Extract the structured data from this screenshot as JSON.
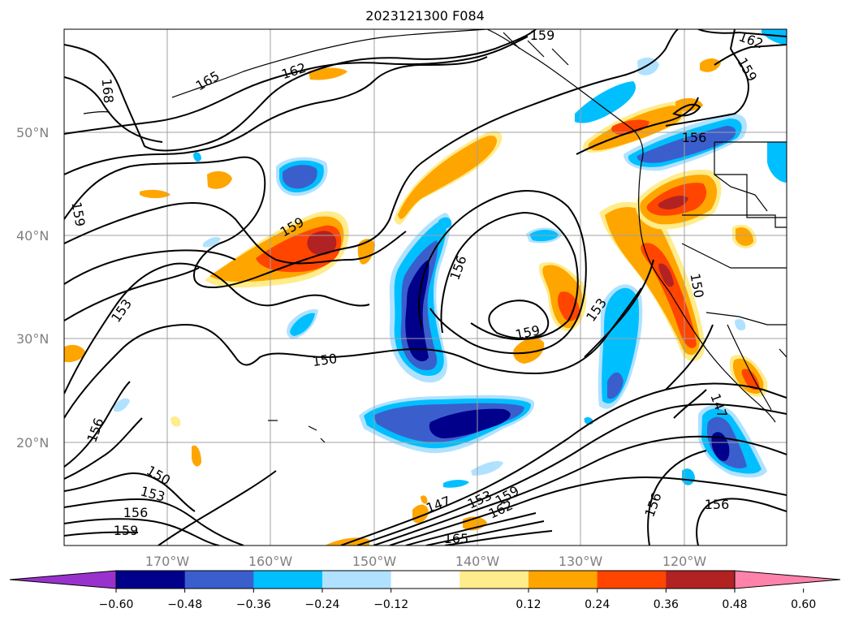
{
  "title": "2023121300 F084",
  "axes": {
    "lat_labels": [
      "50°N",
      "40°N",
      "30°N",
      "20°N"
    ],
    "lon_labels": [
      "170°W",
      "160°W",
      "150°W",
      "140°W",
      "130°W",
      "120°W"
    ]
  },
  "colorbar": {
    "colors": [
      "#9932cc",
      "#00008b",
      "#3a5fcd",
      "#00bfff",
      "#b0e2ff",
      "#ffffff",
      "#ffec8b",
      "#ffa500",
      "#ff4500",
      "#b22222",
      "#ff82ab"
    ],
    "tick_labels": [
      "−0.60",
      "−0.48",
      "−0.36",
      "−0.24",
      "−0.12",
      "0.12",
      "0.24",
      "0.36",
      "0.48",
      "0.60"
    ]
  },
  "contour_labels": [
    "159",
    "162",
    "165",
    "168",
    "162",
    "159",
    "156",
    "159",
    "153",
    "150",
    "156",
    "159",
    "156",
    "159",
    "153",
    "156",
    "150",
    "147",
    "156",
    "156",
    "147",
    "153",
    "156",
    "159",
    "150",
    "159",
    "162",
    "153",
    "165"
  ],
  "colors": {
    "blue_light": "#b0e2ff",
    "blue_mid": "#00bfff",
    "blue_strong": "#3a5fcd",
    "blue_dark": "#00008b",
    "yellow": "#ffec8b",
    "orange": "#ffa500",
    "red_orange": "#ff4500",
    "dark_red": "#b22222"
  }
}
